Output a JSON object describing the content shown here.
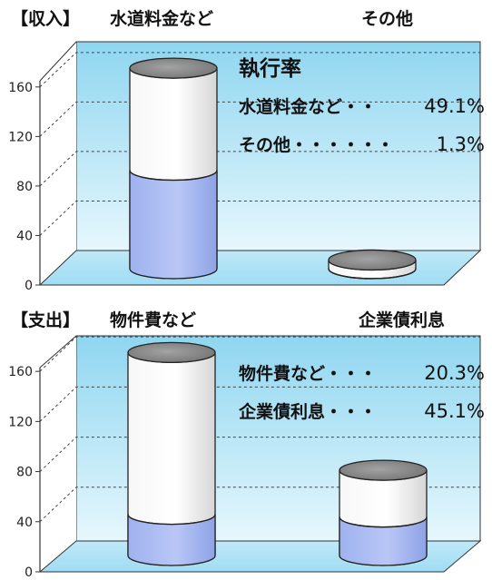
{
  "colors": {
    "cylinder_fill": "#a9b9f2",
    "cylinder_empty": "#f0f0f0",
    "cylinder_top": "#8a8a8a",
    "panel_back": "#b8e6f5",
    "panel_floor": "#c9eef9",
    "axis": "#333333",
    "text": "#111111"
  },
  "chart_data": [
    {
      "type": "bar",
      "style": "3d-cylinder",
      "panel_label": "【収入】",
      "categories": [
        "水道料金など",
        "その他"
      ],
      "values": [
        49.1,
        1.3
      ],
      "value_unit": "%",
      "capacity_units": [
        162,
        7
      ],
      "yticks": [
        0,
        40,
        80,
        120,
        160
      ],
      "ylim": [
        0,
        160
      ],
      "inset_heading": "執行率",
      "inset_lines": [
        {
          "label": "水道料金など・・",
          "value": "49.1%"
        },
        {
          "label": "その他・・・・・・",
          "value": "1.3%"
        }
      ]
    },
    {
      "type": "bar",
      "style": "3d-cylinder",
      "panel_label": "【支出】",
      "categories": [
        "物件費など",
        "企業債利息"
      ],
      "values": [
        20.3,
        45.1
      ],
      "value_unit": "%",
      "capacity_units": [
        162,
        68
      ],
      "yticks": [
        0,
        40,
        80,
        120,
        160
      ],
      "ylim": [
        0,
        160
      ],
      "inset_heading": "",
      "inset_lines": [
        {
          "label": "物件費など・・・",
          "value": "20.3%"
        },
        {
          "label": "企業債利息・・・",
          "value": "45.1%"
        }
      ]
    }
  ]
}
